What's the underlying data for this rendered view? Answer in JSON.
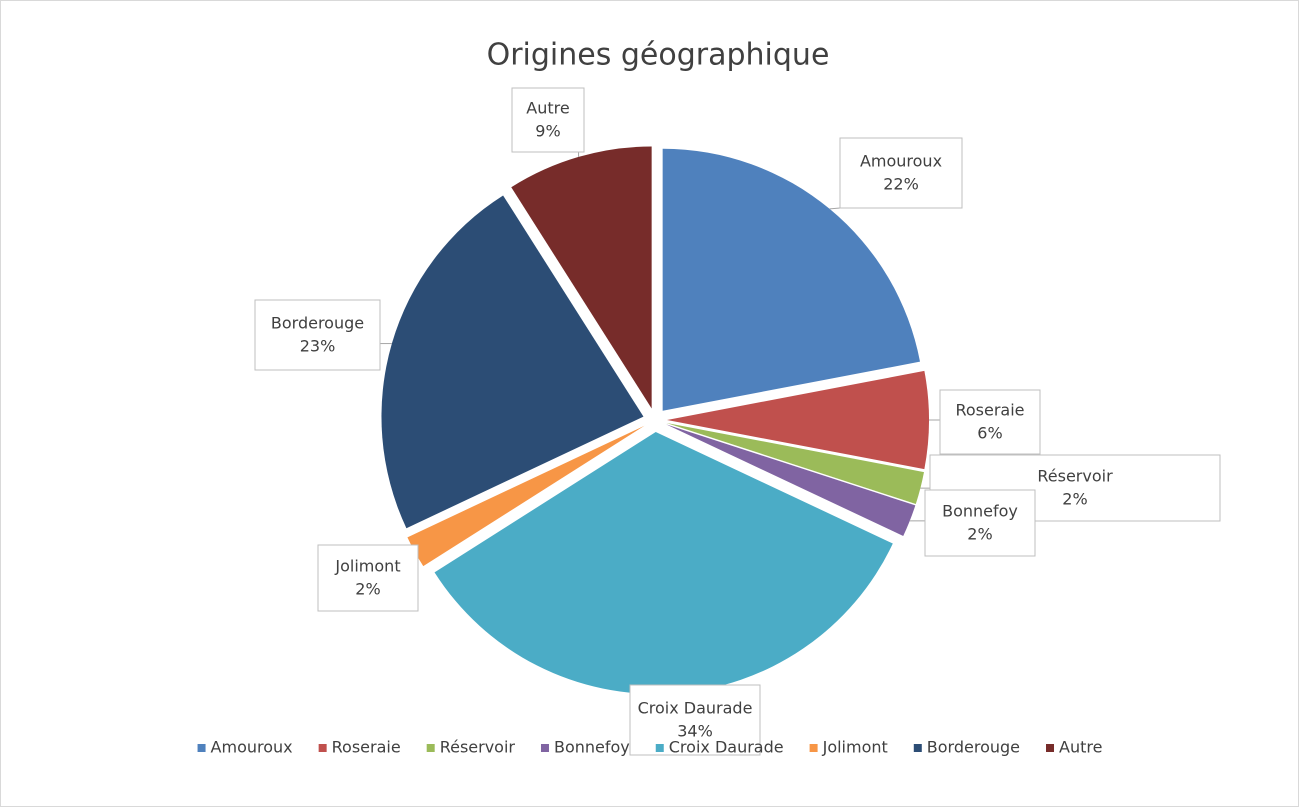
{
  "chart_data": {
    "type": "pie",
    "title": "Origines géographique",
    "categories": [
      "Amouroux",
      "Roseraie",
      "Réservoir",
      "Bonnefoy",
      "Croix Daurade",
      "Jolimont",
      "Borderouge",
      "Autre"
    ],
    "values": [
      22,
      6,
      2,
      2,
      34,
      2,
      23,
      9
    ],
    "value_labels": [
      "22%",
      "6%",
      "2%",
      "2%",
      "34%",
      "2%",
      "23%",
      "9%"
    ],
    "colors": [
      "#4f81bd",
      "#c0504d",
      "#9bbb59",
      "#8064a2",
      "#4bacc6",
      "#f79646",
      "#2c4d75",
      "#772c2a"
    ],
    "legend": "bottom"
  }
}
